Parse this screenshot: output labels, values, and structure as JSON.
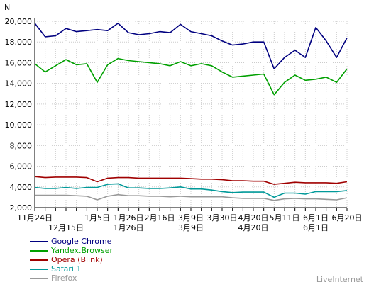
{
  "chart_data": {
    "type": "line",
    "ylabel": "N",
    "ylim": [
      2000,
      20000
    ],
    "y_ticks": [
      "2,000",
      "4,000",
      "6,000",
      "8,000",
      "10,000",
      "12,000",
      "14,000",
      "16,000",
      "18,000",
      "20,000"
    ],
    "x_ticks_upper": [
      "11月24日",
      "1月5日",
      "1月26日",
      "2月16日",
      "3月9日",
      "3月30日",
      "4月20日",
      "5月11日",
      "6月1日",
      "6月20日"
    ],
    "x_ticks_lower": [
      "12月15日",
      "1月26日",
      "3月9日",
      "4月20日",
      "6月1日"
    ],
    "x_tick_count": 30,
    "grid": true,
    "legend_position": "bottom-left",
    "series": [
      {
        "name": "Google Chrome",
        "color": "#000080",
        "values": [
          19800,
          18500,
          18600,
          19300,
          19000,
          19100,
          19200,
          19100,
          19800,
          18900,
          18700,
          18800,
          19000,
          18900,
          19700,
          19000,
          18800,
          18600,
          18100,
          17700,
          17800,
          18000,
          18000,
          15400,
          16500,
          17200,
          16500,
          19400,
          18100,
          16500,
          18400
        ]
      },
      {
        "name": "Yandex.Browser",
        "color": "#00A000",
        "values": [
          15900,
          15100,
          15700,
          16300,
          15800,
          15900,
          14100,
          15800,
          16400,
          16200,
          16100,
          16000,
          15900,
          15700,
          16100,
          15700,
          15900,
          15700,
          15100,
          14600,
          14700,
          14800,
          14900,
          12900,
          14100,
          14800,
          14300,
          14400,
          14600,
          14100,
          15400
        ]
      },
      {
        "name": "Opera (Blink)",
        "color": "#A00000",
        "values": [
          5000,
          4900,
          4950,
          4950,
          4950,
          4900,
          4500,
          4850,
          4900,
          4900,
          4850,
          4850,
          4850,
          4850,
          4850,
          4800,
          4750,
          4750,
          4700,
          4600,
          4600,
          4550,
          4550,
          4250,
          4350,
          4450,
          4400,
          4400,
          4400,
          4350,
          4500
        ]
      },
      {
        "name": "Safari 1",
        "color": "#009999",
        "values": [
          3950,
          3850,
          3850,
          3950,
          3850,
          3950,
          3950,
          4250,
          4300,
          3900,
          3900,
          3850,
          3850,
          3900,
          4000,
          3800,
          3800,
          3700,
          3550,
          3450,
          3500,
          3500,
          3500,
          3000,
          3400,
          3400,
          3300,
          3550,
          3550,
          3550,
          3650
        ]
      },
      {
        "name": "Firefox",
        "color": "#999999",
        "values": [
          3200,
          3200,
          3200,
          3200,
          3150,
          3100,
          2750,
          3100,
          3250,
          3150,
          3150,
          3100,
          3100,
          3050,
          3100,
          3050,
          3050,
          3050,
          3050,
          2950,
          2900,
          2900,
          2900,
          2700,
          2850,
          2900,
          2850,
          2850,
          2800,
          2750,
          2950
        ]
      }
    ]
  },
  "brand": "LiveInternet"
}
